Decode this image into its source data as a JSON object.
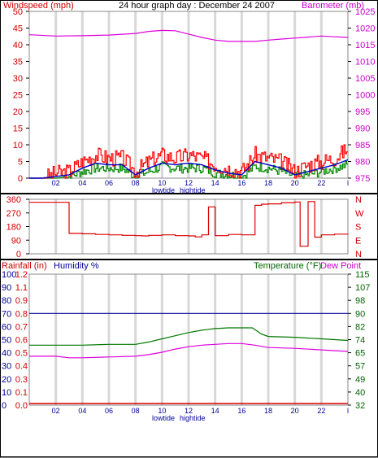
{
  "colors": {
    "wind_axis": "#cc0000",
    "baro_axis": "#cc00cc",
    "rain_axis": "#cc0000",
    "humidity_axis": "#000099",
    "temp_axis": "#006600",
    "dew_axis": "#cc00cc",
    "title": "#000000",
    "xtick": "#000099",
    "grid_band": "#d8d8d8",
    "wind_speed": "#ff0000",
    "wind_avg": "#0000cc",
    "wind_gust_fill": "#008800",
    "barometer_line": "#dd00dd",
    "direction_line": "#dd0000",
    "humidity_line": "#000099",
    "rainfall_line": "#dd0000",
    "temperature_line": "#007700",
    "dewpoint_line": "#dd00dd"
  },
  "chart_data": [
    {
      "type": "line",
      "title": "24 hour graph day : December 24 2007",
      "ylabel_left": "Windspeed (mph)",
      "ylabel_right": "Barometer (mb)",
      "x_ticks": [
        "02",
        "04",
        "06",
        "08",
        "10",
        "12",
        "14",
        "16",
        "18",
        "20",
        "22",
        "l"
      ],
      "x_note_low": "lowtide",
      "x_note_high": "hightide",
      "y_left_ticks": [
        50,
        45,
        40,
        35,
        30,
        25,
        20,
        15,
        10,
        5,
        0
      ],
      "y_left_range": [
        0,
        50
      ],
      "y_right_ticks": [
        1025,
        1020,
        1015,
        1010,
        1005,
        1000,
        995,
        990,
        985,
        980,
        975
      ],
      "y_right_range": [
        975,
        1025
      ],
      "x_range_hours": [
        0,
        24
      ],
      "series": [
        {
          "axis": "right",
          "hours": [
            0,
            2,
            4,
            6,
            8,
            9,
            10,
            11,
            12,
            13,
            14,
            15,
            16,
            17,
            18,
            19,
            20,
            21,
            22,
            23,
            24
          ],
          "values": [
            1018,
            1017.6,
            1017.7,
            1017.9,
            1018.4,
            1019,
            1019.3,
            1019.2,
            1018.2,
            1017.2,
            1016.4,
            1016,
            1016,
            1016,
            1016.4,
            1016.7,
            1017,
            1017.3,
            1017.6,
            1017.4,
            1017.2
          ]
        },
        {
          "axis": "left",
          "hours": [
            0,
            1,
            2,
            3,
            4,
            5,
            6,
            7,
            8,
            9,
            10,
            11,
            12,
            13,
            14,
            15,
            16,
            17,
            18,
            19,
            20,
            21,
            22,
            23,
            24
          ],
          "values": [
            0,
            0,
            1.5,
            2,
            5,
            7,
            6,
            6,
            2,
            5,
            7,
            6,
            7,
            6,
            4,
            3,
            2,
            7,
            6,
            5,
            2,
            4,
            5,
            6,
            9
          ]
        },
        {
          "axis": "left",
          "hours": [
            0,
            1,
            2,
            3,
            4,
            5,
            6,
            7,
            8,
            9,
            10,
            11,
            12,
            13,
            14,
            15,
            16,
            17,
            18,
            19,
            20,
            21,
            22,
            23,
            24
          ],
          "values": [
            0,
            0,
            0.5,
            1,
            3,
            4.5,
            4,
            4,
            1,
            3,
            4.5,
            4,
            4.5,
            4,
            2.5,
            1.5,
            1,
            5,
            4,
            3,
            1,
            2,
            3,
            4,
            5.5
          ]
        },
        {
          "axis": "left",
          "hours": [
            0,
            1,
            2,
            3,
            4,
            5,
            6,
            7,
            8,
            9,
            10,
            11,
            12,
            13,
            14,
            15,
            16,
            17,
            18,
            19,
            20,
            21,
            22,
            23,
            24
          ],
          "values": [
            0,
            0,
            0,
            0.5,
            2,
            3,
            3,
            3,
            0.5,
            2,
            3.5,
            3,
            3,
            3,
            1.5,
            1,
            0.5,
            3.5,
            3,
            2,
            0.5,
            1,
            2,
            3,
            4
          ]
        }
      ]
    },
    {
      "type": "line",
      "y_left_ticks": [
        360,
        270,
        180,
        90,
        0
      ],
      "y_left_range": [
        0,
        360
      ],
      "y_right_ticks": [
        "N",
        "W",
        "S",
        "E",
        "N"
      ],
      "x_range_hours": [
        0,
        24
      ],
      "series": [
        {
          "hours": [
            0,
            1,
            2,
            2.9,
            3,
            4,
            5,
            6,
            7,
            8,
            8.5,
            9,
            10,
            11,
            12,
            12.5,
            13,
            13.5,
            14,
            15,
            16,
            16.5,
            17,
            17.5,
            18,
            19,
            19.5,
            20,
            20.4,
            21,
            21.5,
            22,
            23,
            24
          ],
          "values": [
            340,
            340,
            340,
            340,
            135,
            132,
            128,
            125,
            122,
            120,
            118,
            122,
            125,
            120,
            118,
            112,
            125,
            310,
            120,
            128,
            125,
            125,
            320,
            328,
            330,
            338,
            338,
            342,
            50,
            345,
            110,
            125,
            130,
            128
          ]
        }
      ]
    },
    {
      "type": "line",
      "ylabel_left_rain": "Rainfall (in)",
      "ylabel_left_hum": "Humidity %",
      "ylabel_right_temp": "Temperature (°F)",
      "ylabel_right_dew": "Dew Point",
      "x_ticks": [
        "02",
        "04",
        "06",
        "08",
        "10",
        "12",
        "14",
        "16",
        "18",
        "20",
        "22",
        "l"
      ],
      "x_note_low": "lowtide",
      "x_note_high": "hightide",
      "rain_ticks": [
        "1.2",
        "1.1",
        "0.9",
        "0.8",
        "0.7",
        "0.6",
        "0.5",
        "0.4",
        "0.3",
        "0.1",
        "0.0"
      ],
      "hum_ticks": [
        100,
        90,
        80,
        70,
        60,
        50,
        40,
        30,
        20,
        10,
        0
      ],
      "hum_range": [
        0,
        100
      ],
      "temp_ticks": [
        115,
        107,
        98,
        90,
        82,
        74,
        65,
        57,
        49,
        40,
        32
      ],
      "temp_range": [
        32,
        115
      ],
      "x_range_hours": [
        0,
        24
      ],
      "series": [
        {
          "name": "Humidity",
          "hours": [
            0,
            24
          ],
          "values": [
            70,
            70
          ]
        },
        {
          "name": "Rainfall",
          "hours": [
            0,
            24
          ],
          "values": [
            0,
            0
          ]
        },
        {
          "name": "Temperature",
          "hours": [
            0,
            2,
            4,
            6,
            8,
            9,
            10,
            11,
            12,
            13,
            14,
            15,
            16,
            16.8,
            17.5,
            18,
            20,
            22,
            24
          ],
          "values": [
            70,
            70,
            70,
            70.5,
            70.5,
            72,
            74,
            76,
            78,
            79.5,
            80.5,
            81,
            81,
            81,
            77,
            75.5,
            75,
            74,
            73
          ]
        },
        {
          "name": "Dew Point",
          "hours": [
            0,
            2,
            3,
            4,
            6,
            8,
            9,
            10,
            11,
            12,
            13,
            14,
            15,
            16,
            17,
            18,
            20,
            22,
            24
          ],
          "values": [
            63,
            63,
            62,
            62,
            62.5,
            63,
            64,
            65.5,
            67.5,
            69,
            70,
            70.5,
            71,
            71,
            70,
            68.5,
            68,
            67,
            66
          ]
        }
      ]
    }
  ]
}
